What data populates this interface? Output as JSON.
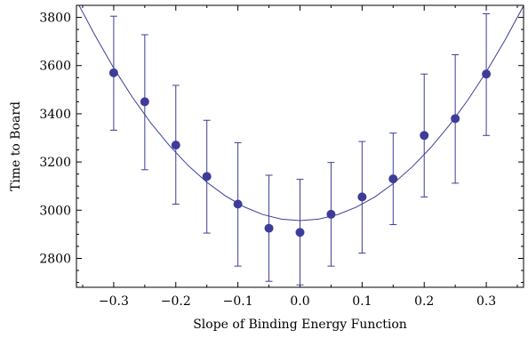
{
  "chart_data": {
    "type": "scatter",
    "title": "",
    "xlabel": "Slope of Binding Energy Function",
    "ylabel": "Time to Board",
    "xlim": [
      -0.36,
      0.36
    ],
    "ylim": [
      2680,
      3850
    ],
    "x_ticks": [
      -0.3,
      -0.2,
      -0.1,
      0.0,
      0.1,
      0.2,
      0.3
    ],
    "x_tick_labels": [
      "−0.3",
      "−0.2",
      "−0.1",
      "0.0",
      "0.1",
      "0.2",
      "0.3"
    ],
    "y_ticks": [
      2800,
      3000,
      3200,
      3400,
      3600,
      3800
    ],
    "y_tick_labels": [
      "2800",
      "3000",
      "3200",
      "3400",
      "3600",
      "3800"
    ],
    "grid": false,
    "legend": "none",
    "colors": {
      "points": "#3d3d99",
      "curve": "#3d3d99",
      "frame": "#000000"
    },
    "series": [
      {
        "x": [
          -0.3,
          -0.25,
          -0.2,
          -0.15,
          -0.1,
          -0.05,
          0.0,
          0.05,
          0.1,
          0.15,
          0.2,
          0.25,
          0.3
        ],
        "y": [
          3570,
          3450,
          3270,
          3140,
          3025,
          2925,
          2908,
          2983,
          3055,
          3130,
          3310,
          3380,
          3565
        ],
        "error_low": [
          3332,
          3168,
          3025,
          2905,
          2768,
          2705,
          2690,
          2768,
          2822,
          2940,
          3055,
          3112,
          3310
        ],
        "error_high": [
          3805,
          3728,
          3518,
          3373,
          3280,
          3145,
          3128,
          3198,
          3285,
          3320,
          3565,
          3645,
          3815
        ]
      }
    ],
    "fit_curve": {
      "type": "quadratic",
      "x": [
        -0.36,
        -0.33,
        -0.3,
        -0.27,
        -0.24,
        -0.21,
        -0.18,
        -0.15,
        -0.12,
        -0.09,
        -0.06,
        -0.03,
        0.0,
        0.03,
        0.06,
        0.09,
        0.12,
        0.15,
        0.18,
        0.21,
        0.24,
        0.27,
        0.3,
        0.33,
        0.36
      ],
      "y": [
        3870,
        3725,
        3590,
        3469,
        3361,
        3267,
        3185,
        3116,
        3059,
        3014,
        2982,
        2963,
        2957,
        2963,
        2981,
        3012,
        3054,
        3110,
        3178,
        3258,
        3351,
        3456,
        3574,
        3705,
        3848
      ]
    }
  }
}
